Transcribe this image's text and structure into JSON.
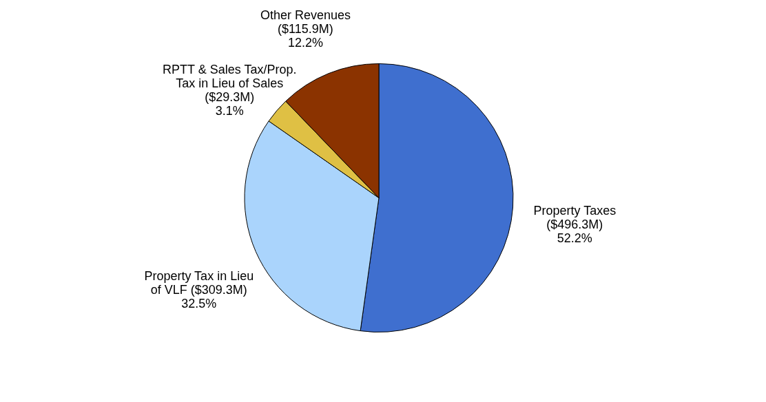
{
  "chart_data": {
    "type": "pie",
    "categories": [
      "Property Taxes ($496.3M)",
      "Property Tax in Lieu of VLF ($309.3M)",
      "RPTT & Sales Tax/Prop. Tax in Lieu of Sales ($29.3M)",
      "Other Revenues ($115.9M)"
    ],
    "values": [
      52.2,
      32.5,
      3.1,
      12.2
    ],
    "colors": [
      "#3f6fcf",
      "#aad4fc",
      "#dfc044",
      "#8b3300"
    ],
    "value_labels": [
      "52.2%",
      "32.5%",
      "3.1%",
      "12.2%"
    ]
  }
}
